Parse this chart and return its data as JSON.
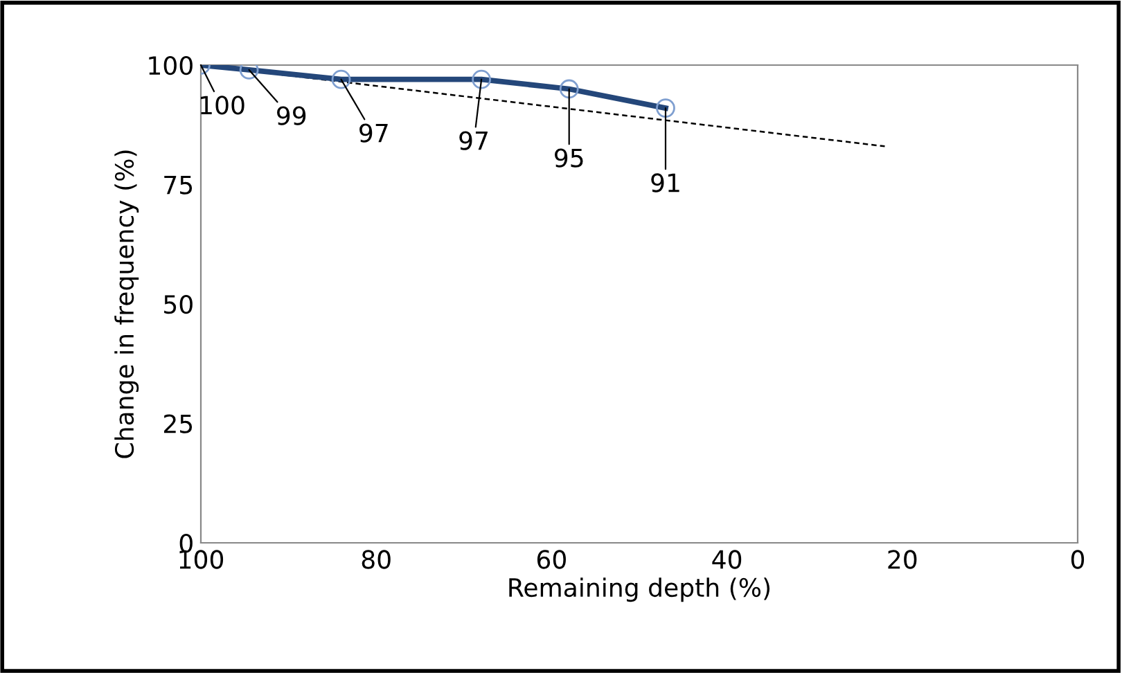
{
  "chart_data": {
    "type": "line",
    "xlabel": "Remaining depth (%)",
    "ylabel": "Change in frequency (%)",
    "xlim": [
      100,
      0
    ],
    "xticks": [
      100,
      80,
      60,
      40,
      20,
      0
    ],
    "ylim": [
      0,
      100
    ],
    "yticks": [
      0,
      25,
      50,
      75,
      100
    ],
    "grid": false,
    "legend": false,
    "series": [
      {
        "color": "#24477a",
        "marker": "circle",
        "line_style": "solid",
        "x": [
          100,
          94.5,
          84,
          68,
          58,
          47
        ],
        "values": [
          100,
          99,
          97,
          97,
          95,
          91
        ],
        "value_labels": [
          "100",
          "99",
          "97",
          "97",
          "95",
          "91"
        ]
      },
      {
        "color": "#000000",
        "marker": "none",
        "line_style": "dashed",
        "x": [
          100,
          22
        ],
        "values": [
          100,
          83
        ]
      }
    ]
  }
}
